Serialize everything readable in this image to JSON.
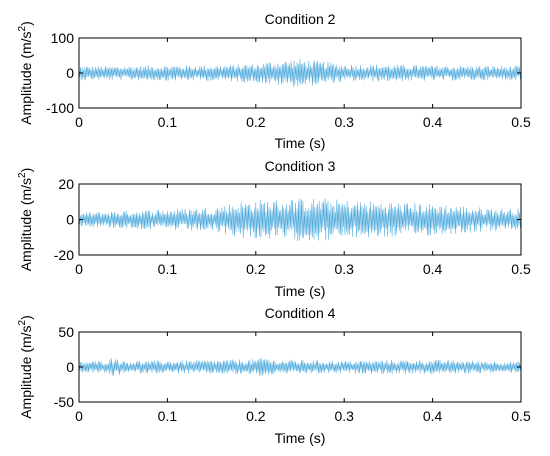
{
  "chart_data": [
    {
      "type": "line",
      "title": "Condition 2",
      "xlabel": "Time (s)",
      "ylabel": "Amplitude (m/s",
      "ylabel_superscript": "2",
      "ylabel_close": ")",
      "xlim": [
        0,
        0.5
      ],
      "ylim": [
        -100,
        100
      ],
      "xticks": [
        0,
        0.1,
        0.2,
        0.3,
        0.4,
        0.5
      ],
      "xtick_labels": [
        "0",
        "0.1",
        "0.2",
        "0.3",
        "0.4",
        "0.5"
      ],
      "yticks": [
        -100,
        0,
        100
      ],
      "ytick_labels": [
        "-100",
        "0",
        "100"
      ],
      "grid": false,
      "color": "#4aa8dc",
      "series": [
        {
          "sampling": {
            "t_start": 0,
            "t_end": 0.5,
            "points": 600
          },
          "envelope": {
            "t": [
              0,
              0.05,
              0.1,
              0.15,
              0.2,
              0.22,
              0.25,
              0.28,
              0.3,
              0.35,
              0.4,
              0.45,
              0.5
            ],
            "amplitude": [
              20,
              20,
              22,
              22,
              27,
              35,
              40,
              32,
              25,
              24,
              22,
              21,
              20
            ]
          }
        }
      ]
    },
    {
      "type": "line",
      "title": "Condition 3",
      "xlabel": "Time (s)",
      "ylabel": "Amplitude (m/s",
      "ylabel_superscript": "2",
      "ylabel_close": ")",
      "xlim": [
        0,
        0.5
      ],
      "ylim": [
        -20,
        20
      ],
      "xticks": [
        0,
        0.1,
        0.2,
        0.3,
        0.4,
        0.5
      ],
      "xtick_labels": [
        "0",
        "0.1",
        "0.2",
        "0.3",
        "0.4",
        "0.5"
      ],
      "yticks": [
        -20,
        0,
        20
      ],
      "ytick_labels": [
        "-20",
        "0",
        "20"
      ],
      "grid": false,
      "color": "#4aa8dc",
      "series": [
        {
          "sampling": {
            "t_start": 0,
            "t_end": 0.5,
            "points": 600
          },
          "envelope": {
            "t": [
              0,
              0.05,
              0.1,
              0.15,
              0.18,
              0.2,
              0.25,
              0.28,
              0.3,
              0.35,
              0.4,
              0.45,
              0.5
            ],
            "amplitude": [
              4,
              5,
              6,
              7,
              10,
              11,
              12,
              12,
              11,
              10,
              9,
              7,
              6
            ]
          }
        }
      ]
    },
    {
      "type": "line",
      "title": "Condition 4",
      "xlabel": "Time (s)",
      "ylabel": "Amplitude (m/s",
      "ylabel_superscript": "2",
      "ylabel_close": ")",
      "xlim": [
        0,
        0.5
      ],
      "ylim": [
        -50,
        50
      ],
      "xticks": [
        0,
        0.1,
        0.2,
        0.3,
        0.4,
        0.5
      ],
      "xtick_labels": [
        "0",
        "0.1",
        "0.2",
        "0.3",
        "0.4",
        "0.5"
      ],
      "yticks": [
        -50,
        0,
        50
      ],
      "ytick_labels": [
        "-50",
        "0",
        "50"
      ],
      "grid": false,
      "color": "#4aa8dc",
      "series": [
        {
          "sampling": {
            "t_start": 0,
            "t_end": 0.5,
            "points": 600
          },
          "envelope": {
            "t": [
              0,
              0.03,
              0.04,
              0.05,
              0.1,
              0.15,
              0.2,
              0.21,
              0.22,
              0.25,
              0.3,
              0.35,
              0.4,
              0.45,
              0.5
            ],
            "amplitude": [
              8,
              9,
              15,
              9,
              9,
              10,
              11,
              15,
              10,
              10,
              9,
              10,
              10,
              9,
              8
            ]
          }
        }
      ]
    }
  ]
}
